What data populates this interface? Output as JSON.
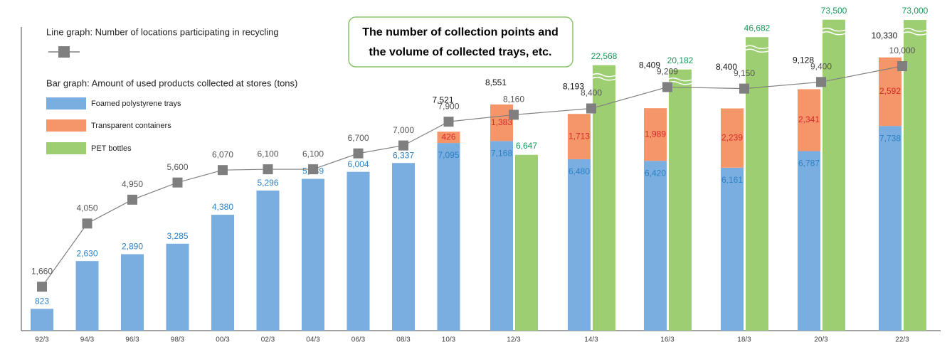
{
  "chart_data": {
    "type": "bar_line",
    "note_box": [
      "The number of collection points and",
      "the volume of collected trays, etc."
    ],
    "bar_legend_title": "Bar graph: Amount of used products collected at stores (tons)",
    "categories": [
      "92/3",
      "94/3",
      "96/3",
      "98/3",
      "00/3",
      "02/3",
      "04/3",
      "06/3",
      "08/3",
      "10/3",
      "12/3",
      "14/3",
      "16/3",
      "18/3",
      "20/3",
      "22/3"
    ],
    "ylim": [
      0,
      12500
    ],
    "series": [
      {
        "name": "Foamed polystyrene trays",
        "color": "#7aaee0",
        "label_color": "#2b82c5",
        "values": [
          823,
          2630,
          2890,
          3285,
          4380,
          5296,
          5739,
          6004,
          6337,
          7095,
          7168,
          6480,
          6420,
          6161,
          6787,
          7738
        ],
        "value_labels": [
          "823",
          "2,630",
          "2,890",
          "3,285",
          "4,380",
          "5,296",
          "5,739",
          "6,004",
          "6,337",
          "7,095",
          "7,168",
          "6,480",
          "6,420",
          "6,161",
          "6,787",
          "7,738"
        ]
      },
      {
        "name": "Transparent containers",
        "color": "#f5956a",
        "label_color": "#d62b2b",
        "values": [
          null,
          null,
          null,
          null,
          null,
          null,
          null,
          null,
          null,
          426,
          1383,
          1713,
          1989,
          2239,
          2341,
          2592
        ],
        "value_labels": [
          null,
          null,
          null,
          null,
          null,
          null,
          null,
          null,
          null,
          "426",
          "1,383",
          "1,713",
          "1,989",
          "2,239",
          "2,341",
          "2,592"
        ]
      },
      {
        "name": "PET bottles",
        "color": "#9dcf72",
        "label_color": "#1a9a5a",
        "values": [
          null,
          null,
          null,
          null,
          null,
          null,
          null,
          null,
          null,
          null,
          6647,
          22568,
          20182,
          46682,
          73500,
          73000
        ],
        "value_labels": [
          null,
          null,
          null,
          null,
          null,
          null,
          null,
          null,
          null,
          null,
          "6,647",
          "22,568",
          "20,182",
          "46,682",
          "73,500",
          "73,000"
        ]
      },
      {
        "name": "Line graph: Number of locations participating in recycling",
        "color": "#808080",
        "label_color": "#555555",
        "type": "line",
        "values": [
          1660,
          4050,
          4950,
          5600,
          6070,
          6100,
          6100,
          6700,
          7000,
          7900,
          8160,
          8400,
          9209,
          9150,
          9400,
          10000
        ],
        "value_labels": [
          "1,660",
          "4,050",
          "4,950",
          "5,600",
          "6,070",
          "6,100",
          "6,100",
          "6,700",
          "7,000",
          "7,900",
          "8,160",
          "8,400",
          "9,209",
          "9,150",
          "9,400",
          "10,000"
        ]
      }
    ],
    "totals": {
      "values": [
        null,
        null,
        null,
        null,
        null,
        null,
        null,
        null,
        null,
        7521,
        8551,
        8193,
        8409,
        8400,
        9128,
        10330
      ],
      "value_labels": [
        null,
        null,
        null,
        null,
        null,
        null,
        null,
        null,
        null,
        "7,521",
        "8,551",
        "8,193",
        "8,409",
        "8,400",
        "9,128",
        "10,330"
      ]
    }
  }
}
